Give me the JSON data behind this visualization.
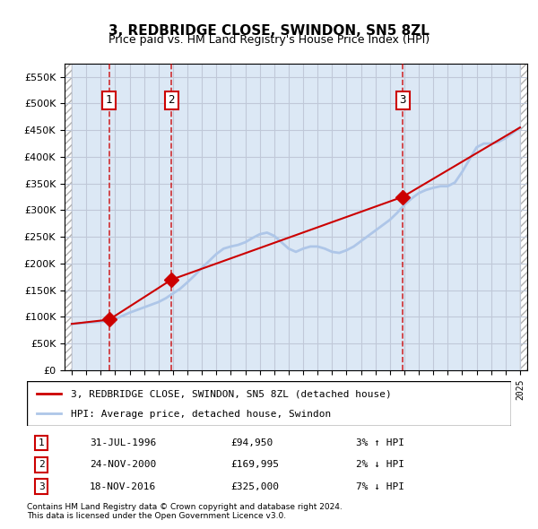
{
  "title": "3, REDBRIDGE CLOSE, SWINDON, SN5 8ZL",
  "subtitle": "Price paid vs. HM Land Registry's House Price Index (HPI)",
  "legend_line1": "3, REDBRIDGE CLOSE, SWINDON, SN5 8ZL (detached house)",
  "legend_line2": "HPI: Average price, detached house, Swindon",
  "footer1": "Contains HM Land Registry data © Crown copyright and database right 2024.",
  "footer2": "This data is licensed under the Open Government Licence v3.0.",
  "transactions": [
    {
      "num": 1,
      "date": "31-JUL-1996",
      "price": 94950,
      "year": 1996.58,
      "hpi_pct": "3%",
      "hpi_dir": "↑"
    },
    {
      "num": 2,
      "date": "24-NOV-2000",
      "price": 169995,
      "year": 2000.9,
      "hpi_pct": "2%",
      "hpi_dir": "↓"
    },
    {
      "num": 3,
      "date": "18-NOV-2016",
      "price": 325000,
      "year": 2016.88,
      "hpi_pct": "7%",
      "hpi_dir": "↓"
    }
  ],
  "hpi_line_color": "#aec6e8",
  "price_line_color": "#cc0000",
  "marker_color": "#cc0000",
  "vline_color": "#cc0000",
  "background_hatch_color": "#d0d0d0",
  "grid_color": "#c0c8d8",
  "plot_bg": "#dce8f5",
  "ylim": [
    0,
    575000
  ],
  "yticks": [
    0,
    50000,
    100000,
    150000,
    200000,
    250000,
    300000,
    350000,
    400000,
    450000,
    500000,
    550000
  ],
  "xmin": 1993.5,
  "xmax": 2025.5,
  "hpi_data_x": [
    1994,
    1994.5,
    1995,
    1995.5,
    1996,
    1996.5,
    1997,
    1997.5,
    1998,
    1998.5,
    1999,
    1999.5,
    2000,
    2000.5,
    2001,
    2001.5,
    2002,
    2002.5,
    2003,
    2003.5,
    2004,
    2004.5,
    2005,
    2005.5,
    2006,
    2006.5,
    2007,
    2007.5,
    2008,
    2008.5,
    2009,
    2009.5,
    2010,
    2010.5,
    2011,
    2011.5,
    2012,
    2012.5,
    2013,
    2013.5,
    2014,
    2014.5,
    2015,
    2015.5,
    2016,
    2016.5,
    2017,
    2017.5,
    2018,
    2018.5,
    2019,
    2019.5,
    2020,
    2020.5,
    2021,
    2021.5,
    2022,
    2022.5,
    2023,
    2023.5,
    2024,
    2024.5,
    2025
  ],
  "hpi_data_y": [
    87000,
    88000,
    89000,
    90000,
    91000,
    92500,
    96000,
    102000,
    108000,
    113000,
    118000,
    123000,
    128000,
    135000,
    144000,
    153000,
    165000,
    178000,
    192000,
    205000,
    218000,
    228000,
    232000,
    235000,
    240000,
    248000,
    255000,
    258000,
    252000,
    240000,
    228000,
    222000,
    228000,
    232000,
    232000,
    228000,
    222000,
    220000,
    225000,
    232000,
    242000,
    252000,
    262000,
    272000,
    282000,
    295000,
    310000,
    322000,
    332000,
    338000,
    342000,
    345000,
    345000,
    352000,
    372000,
    395000,
    418000,
    425000,
    425000,
    428000,
    435000,
    445000,
    455000
  ],
  "price_data_x": [
    1994,
    1996.58,
    2000.9,
    2016.88,
    2025
  ],
  "price_data_y": [
    87000,
    94950,
    169995,
    325000,
    455000
  ]
}
